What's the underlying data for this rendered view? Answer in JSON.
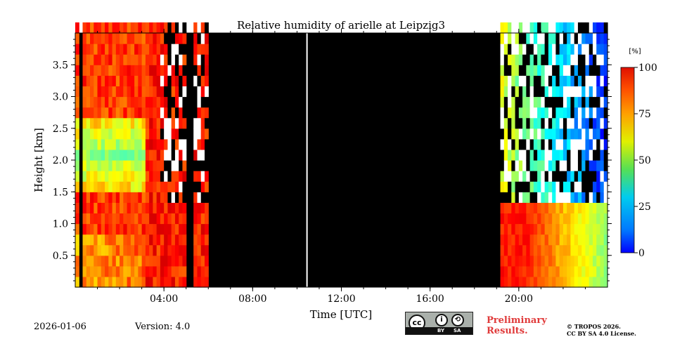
{
  "chart_data": {
    "type": "heatmap",
    "title": "Relative humidity of arielle at Leipzig3",
    "xlabel": "Time [UTC]",
    "ylabel": "Height [km]",
    "xlim_hours": [
      0,
      24
    ],
    "ylim": [
      0,
      4.0
    ],
    "xticks": [
      {
        "value": 4,
        "label": "04:00"
      },
      {
        "value": 8,
        "label": "08:00"
      },
      {
        "value": 12,
        "label": "12:00"
      },
      {
        "value": 16,
        "label": "16:00"
      },
      {
        "value": 20,
        "label": "20:00"
      }
    ],
    "yticks": [
      {
        "value": 0.5,
        "label": "0.5"
      },
      {
        "value": 1.0,
        "label": "1.0"
      },
      {
        "value": 1.5,
        "label": "1.5"
      },
      {
        "value": 2.0,
        "label": "2.0"
      },
      {
        "value": 2.5,
        "label": "2.5"
      },
      {
        "value": 3.0,
        "label": "3.0"
      },
      {
        "value": 3.5,
        "label": "3.5"
      }
    ],
    "colorbar": {
      "unit": "[%]",
      "range": [
        0,
        100
      ],
      "colormap": "jet",
      "ticks": [
        {
          "value": 0,
          "label": "0"
        },
        {
          "value": 25,
          "label": "25"
        },
        {
          "value": 50,
          "label": "50"
        },
        {
          "value": 75,
          "label": "75"
        },
        {
          "value": 100,
          "label": "100"
        }
      ]
    },
    "no_data_periods_hours": [
      [
        0.1,
        0.25
      ],
      [
        5.0,
        5.2
      ],
      [
        6.0,
        19.0
      ]
    ],
    "noisy_region_above_km": 1.25,
    "vertical_gap_hour": 10.45,
    "regime_summary": [
      {
        "from_hour": 0,
        "to_hour": 6,
        "rh_percent_low": 80,
        "rh_percent_high": 50,
        "note": "moist, humid layer, green 1.5-2.5 km"
      },
      {
        "from_hour": 19,
        "to_hour": 21,
        "rh_percent_low": 85,
        "note": "moist boundary layer below 1.2 km"
      },
      {
        "from_hour": 21,
        "to_hour": 24,
        "rh_percent_low": 50,
        "rh_percent_high": 15,
        "note": "drying, blue aloft"
      }
    ]
  },
  "footer": {
    "date": "2026-01-06",
    "version": "Version: 4.0",
    "preliminary": [
      "Preliminary",
      "Results."
    ],
    "copyright": [
      "© TROPOS 2026.",
      "CC BY SA 4.0 License."
    ],
    "license_badge": {
      "by": "BY",
      "sa": "SA"
    }
  }
}
